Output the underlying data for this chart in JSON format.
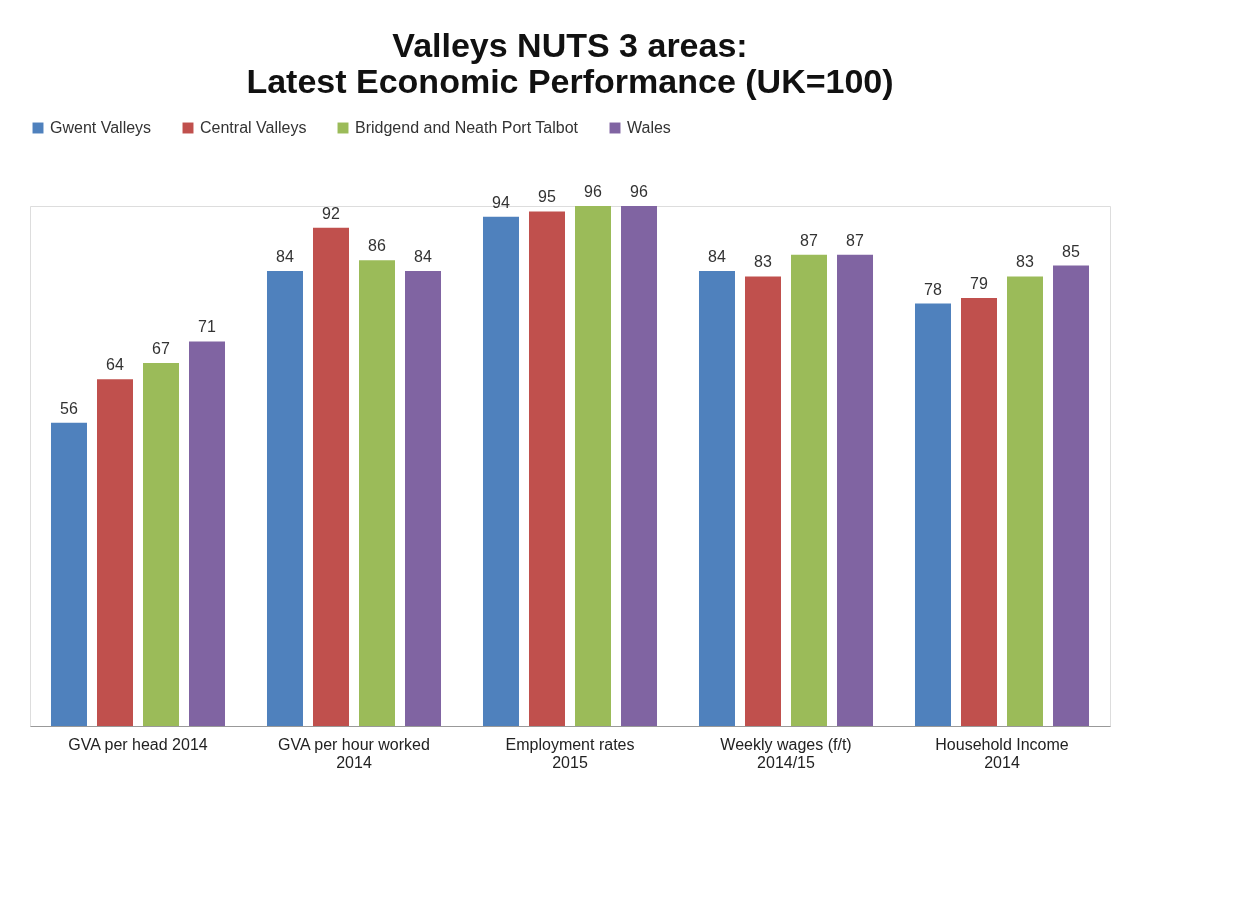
{
  "chart_data": {
    "type": "bar",
    "title": "Valleys NUTS 3 areas:\nLatest Economic Performance (UK=100)",
    "categories": [
      "GVA per head 2014",
      "GVA per hour worked\n2014",
      "Employment rates\n2015",
      "Weekly wages (f/t)\n2014/15",
      "Household Income\n2014"
    ],
    "series": [
      {
        "name": "Gwent Valleys",
        "color": "#4f81bd",
        "values": [
          56,
          84,
          94,
          84,
          78
        ]
      },
      {
        "name": "Central Valleys",
        "color": "#c0504d",
        "values": [
          64,
          92,
          95,
          83,
          79
        ]
      },
      {
        "name": "Bridgend and Neath Port Talbot",
        "color": "#9bbb59",
        "values": [
          67,
          86,
          96,
          87,
          83
        ]
      },
      {
        "name": "Wales",
        "color": "#8064a2",
        "values": [
          71,
          84,
          96,
          87,
          85
        ]
      }
    ],
    "data_labels": true,
    "legend": "top",
    "grid": false,
    "tick_labels": "x"
  }
}
